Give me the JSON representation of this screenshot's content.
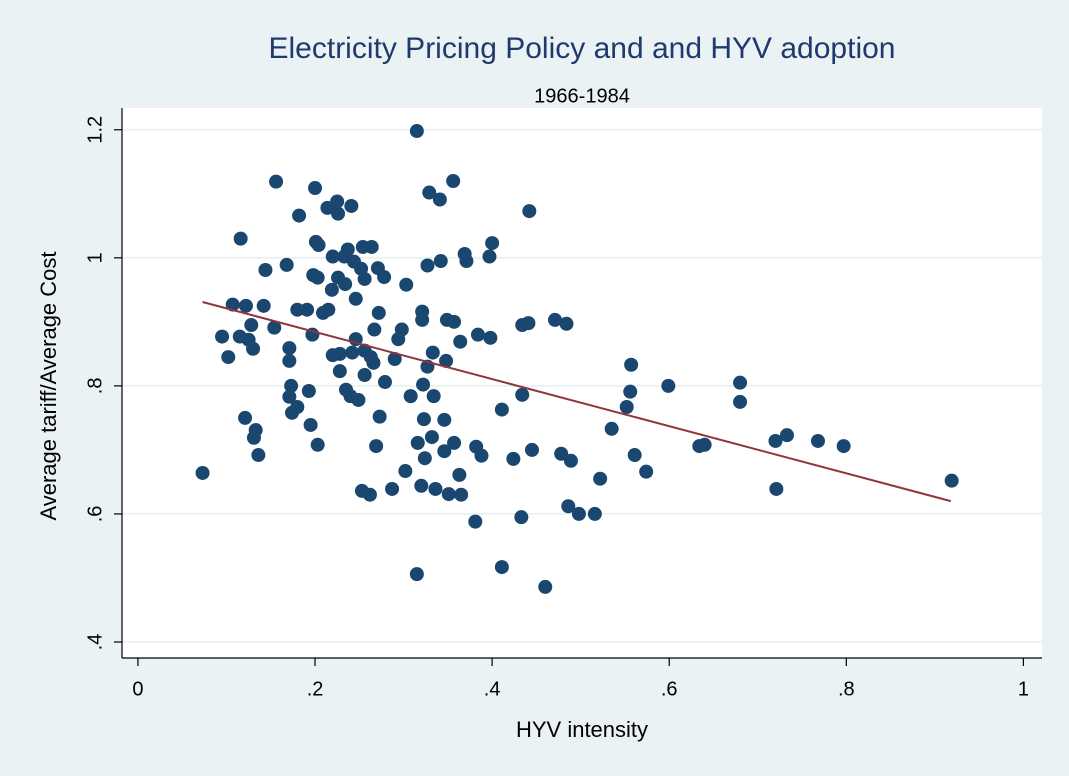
{
  "chart_data": {
    "type": "scatter",
    "title": "Electricity Pricing Policy and and HYV adoption",
    "subtitle": "1966-1984",
    "x_label": "HYV intensity",
    "y_label": "Average tariff/Average Cost",
    "color": "#1a476f",
    "x": [
      0.073,
      0.095,
      0.102,
      0.107,
      0.116,
      0.115,
      0.122,
      0.121,
      0.125,
      0.128,
      0.13,
      0.131,
      0.133,
      0.136,
      0.144,
      0.142,
      0.154,
      0.156,
      0.168,
      0.171,
      0.171,
      0.173,
      0.171,
      0.174,
      0.18,
      0.18,
      0.182,
      0.191,
      0.193,
      0.195,
      0.197,
      0.198,
      0.2,
      0.201,
      0.204,
      0.203,
      0.203,
      0.209,
      0.214,
      0.215,
      0.22,
      0.219,
      0.22,
      0.225,
      0.226,
      0.226,
      0.228,
      0.228,
      0.233,
      0.234,
      0.235,
      0.237,
      0.24,
      0.241,
      0.242,
      0.244,
      0.246,
      0.246,
      0.249,
      0.252,
      0.254,
      0.253,
      0.256,
      0.256,
      0.256,
      0.262,
      0.264,
      0.263,
      0.266,
      0.267,
      0.269,
      0.271,
      0.272,
      0.273,
      0.278,
      0.279,
      0.287,
      0.29,
      0.294,
      0.298,
      0.302,
      0.303,
      0.308,
      0.315,
      0.315,
      0.316,
      0.32,
      0.321,
      0.321,
      0.322,
      0.323,
      0.324,
      0.327,
      0.327,
      0.329,
      0.332,
      0.333,
      0.334,
      0.336,
      0.341,
      0.342,
      0.346,
      0.346,
      0.348,
      0.349,
      0.351,
      0.356,
      0.357,
      0.357,
      0.364,
      0.363,
      0.365,
      0.369,
      0.371,
      0.381,
      0.382,
      0.384,
      0.388,
      0.398,
      0.397,
      0.4,
      0.411,
      0.411,
      0.424,
      0.433,
      0.434,
      0.434,
      0.441,
      0.442,
      0.445,
      0.46,
      0.471,
      0.478,
      0.484,
      0.486,
      0.489,
      0.498,
      0.516,
      0.522,
      0.535,
      0.552,
      0.556,
      0.557,
      0.561,
      0.574,
      0.599,
      0.634,
      0.64,
      0.68,
      0.68,
      0.72,
      0.721,
      0.733,
      0.768,
      0.797,
      0.919
    ],
    "values": [
      0.664,
      0.877,
      0.845,
      0.927,
      1.03,
      0.877,
      0.925,
      0.75,
      0.872,
      0.895,
      0.858,
      0.719,
      0.731,
      0.692,
      0.981,
      0.925,
      0.891,
      1.119,
      0.989,
      0.859,
      0.839,
      0.8,
      0.783,
      0.758,
      0.767,
      0.919,
      1.066,
      0.919,
      0.792,
      0.739,
      0.88,
      0.973,
      1.109,
      1.025,
      1.02,
      0.969,
      0.708,
      0.914,
      1.078,
      0.919,
      1.002,
      0.95,
      0.848,
      1.088,
      1.069,
      0.969,
      0.85,
      0.823,
      1.002,
      0.959,
      0.794,
      1.013,
      0.784,
      1.081,
      0.852,
      0.994,
      0.936,
      0.873,
      0.778,
      0.983,
      1.017,
      0.636,
      0.967,
      0.817,
      0.855,
      0.63,
      1.017,
      0.845,
      0.836,
      0.888,
      0.706,
      0.984,
      0.914,
      0.752,
      0.97,
      0.806,
      0.639,
      0.842,
      0.873,
      0.888,
      0.667,
      0.958,
      0.784,
      1.198,
      0.506,
      0.711,
      0.644,
      0.903,
      0.916,
      0.802,
      0.748,
      0.687,
      0.83,
      0.988,
      1.102,
      0.72,
      0.852,
      0.784,
      0.639,
      1.091,
      0.995,
      0.747,
      0.698,
      0.839,
      0.903,
      0.631,
      1.12,
      0.9,
      0.711,
      0.869,
      0.661,
      0.63,
      1.006,
      0.995,
      0.588,
      0.705,
      0.88,
      0.691,
      0.875,
      1.002,
      1.023,
      0.517,
      0.763,
      0.686,
      0.595,
      0.786,
      0.895,
      0.898,
      1.073,
      0.7,
      0.486,
      0.903,
      0.694,
      0.897,
      0.612,
      0.683,
      0.6,
      0.6,
      0.655,
      0.733,
      0.767,
      0.791,
      0.833,
      0.692,
      0.666,
      0.8,
      0.706,
      0.708,
      0.805,
      0.775,
      0.714,
      0.639,
      0.723,
      0.714,
      0.706,
      0.652
    ],
    "fit": {
      "color": "#90353b",
      "x": [
        0.073,
        0.918
      ],
      "values": [
        0.931,
        0.62
      ]
    },
    "xlim": [
      -0.018,
      1.021
    ],
    "ylim": [
      0.375,
      1.234
    ],
    "xticks": [
      0,
      {
        "value": 0.2,
        "label": ".2"
      },
      {
        "value": 0.4,
        "label": ".4"
      },
      {
        "value": 0.6,
        "label": ".6"
      },
      {
        "value": 0.8,
        "label": ".8"
      },
      1
    ],
    "yticks": [
      {
        "value": 0.4,
        "label": ".4"
      },
      {
        "value": 0.6,
        "label": ".6"
      },
      {
        "value": 0.8,
        "label": ".8"
      },
      1,
      {
        "value": 1.2,
        "label": "1.2"
      }
    ],
    "grid": true
  }
}
